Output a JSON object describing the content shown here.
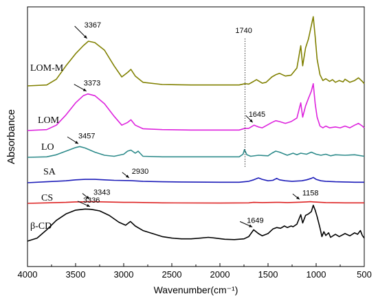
{
  "chart_data": {
    "type": "line",
    "title": "",
    "xlabel": "Wavenumber(cm⁻¹)",
    "ylabel": "Absorbance",
    "x_reversed": true,
    "xlim": [
      4000,
      500
    ],
    "xticks": [
      4000,
      3500,
      3000,
      2500,
      2000,
      1500,
      1000,
      500
    ],
    "yticks": [],
    "grid": false,
    "legend": "none",
    "series": [
      {
        "name": "LOM-M",
        "color": "#808000",
        "label_side": "left",
        "baseline": 0.0,
        "points": [
          [
            4000,
            0
          ],
          [
            3800,
            0.02
          ],
          [
            3700,
            0.15
          ],
          [
            3600,
            0.45
          ],
          [
            3500,
            0.72
          ],
          [
            3420,
            0.9
          ],
          [
            3367,
            1.0
          ],
          [
            3300,
            0.97
          ],
          [
            3200,
            0.8
          ],
          [
            3100,
            0.45
          ],
          [
            3020,
            0.2
          ],
          [
            2960,
            0.3
          ],
          [
            2925,
            0.37
          ],
          [
            2880,
            0.22
          ],
          [
            2800,
            0.08
          ],
          [
            2600,
            0.03
          ],
          [
            2300,
            0.02
          ],
          [
            2000,
            0.02
          ],
          [
            1800,
            0.02
          ],
          [
            1740,
            0.05
          ],
          [
            1700,
            0.04
          ],
          [
            1650,
            0.1
          ],
          [
            1620,
            0.14
          ],
          [
            1560,
            0.06
          ],
          [
            1520,
            0.08
          ],
          [
            1460,
            0.2
          ],
          [
            1420,
            0.25
          ],
          [
            1380,
            0.28
          ],
          [
            1320,
            0.22
          ],
          [
            1260,
            0.24
          ],
          [
            1200,
            0.4
          ],
          [
            1160,
            0.9
          ],
          [
            1140,
            0.45
          ],
          [
            1110,
            0.85
          ],
          [
            1080,
            1.05
          ],
          [
            1050,
            1.35
          ],
          [
            1030,
            1.55
          ],
          [
            1010,
            1.1
          ],
          [
            990,
            0.6
          ],
          [
            960,
            0.25
          ],
          [
            930,
            0.12
          ],
          [
            900,
            0.16
          ],
          [
            860,
            0.1
          ],
          [
            830,
            0.14
          ],
          [
            800,
            0.08
          ],
          [
            760,
            0.12
          ],
          [
            720,
            0.09
          ],
          [
            700,
            0.15
          ],
          [
            650,
            0.08
          ],
          [
            600,
            0.12
          ],
          [
            560,
            0.18
          ],
          [
            520,
            0.1
          ],
          [
            500,
            0.05
          ]
        ],
        "annotations": [
          {
            "text": "3367",
            "x": 3367
          }
        ]
      },
      {
        "name": "LOM",
        "color": "#dd22dd",
        "label_side": "left",
        "baseline": 0.0,
        "points": [
          [
            4000,
            0
          ],
          [
            3800,
            0.02
          ],
          [
            3700,
            0.12
          ],
          [
            3600,
            0.35
          ],
          [
            3500,
            0.62
          ],
          [
            3420,
            0.78
          ],
          [
            3373,
            0.82
          ],
          [
            3300,
            0.78
          ],
          [
            3200,
            0.6
          ],
          [
            3100,
            0.32
          ],
          [
            3020,
            0.12
          ],
          [
            2960,
            0.18
          ],
          [
            2925,
            0.24
          ],
          [
            2880,
            0.12
          ],
          [
            2800,
            0.04
          ],
          [
            2600,
            0.02
          ],
          [
            2300,
            0.01
          ],
          [
            2000,
            0.01
          ],
          [
            1800,
            0.01
          ],
          [
            1740,
            0.05
          ],
          [
            1700,
            0.05
          ],
          [
            1645,
            0.12
          ],
          [
            1600,
            0.08
          ],
          [
            1560,
            0.06
          ],
          [
            1460,
            0.18
          ],
          [
            1420,
            0.22
          ],
          [
            1380,
            0.2
          ],
          [
            1320,
            0.16
          ],
          [
            1260,
            0.2
          ],
          [
            1200,
            0.28
          ],
          [
            1160,
            0.62
          ],
          [
            1140,
            0.3
          ],
          [
            1110,
            0.55
          ],
          [
            1080,
            0.72
          ],
          [
            1050,
            0.88
          ],
          [
            1030,
            1.05
          ],
          [
            1010,
            0.6
          ],
          [
            990,
            0.3
          ],
          [
            960,
            0.1
          ],
          [
            930,
            0.06
          ],
          [
            900,
            0.1
          ],
          [
            860,
            0.06
          ],
          [
            800,
            0.08
          ],
          [
            750,
            0.06
          ],
          [
            700,
            0.1
          ],
          [
            650,
            0.06
          ],
          [
            600,
            0.12
          ],
          [
            560,
            0.16
          ],
          [
            520,
            0.1
          ],
          [
            500,
            0.06
          ]
        ],
        "annotations": [
          {
            "text": "3373",
            "x": 3373
          },
          {
            "text": "1645",
            "x": 1645
          }
        ]
      },
      {
        "name": "LO",
        "color": "#2e8b8b",
        "label_side": "left",
        "baseline": 0.0,
        "points": [
          [
            4000,
            0
          ],
          [
            3800,
            0.01
          ],
          [
            3700,
            0.05
          ],
          [
            3600,
            0.12
          ],
          [
            3500,
            0.19
          ],
          [
            3457,
            0.21
          ],
          [
            3400,
            0.18
          ],
          [
            3300,
            0.1
          ],
          [
            3200,
            0.04
          ],
          [
            3100,
            0.02
          ],
          [
            3000,
            0.06
          ],
          [
            2960,
            0.12
          ],
          [
            2925,
            0.14
          ],
          [
            2880,
            0.08
          ],
          [
            2850,
            0.12
          ],
          [
            2800,
            0.02
          ],
          [
            2600,
            0.01
          ],
          [
            2000,
            0.01
          ],
          [
            1800,
            0.01
          ],
          [
            1760,
            0.06
          ],
          [
            1745,
            0.15
          ],
          [
            1720,
            0.05
          ],
          [
            1680,
            0.02
          ],
          [
            1600,
            0.04
          ],
          [
            1500,
            0.03
          ],
          [
            1460,
            0.08
          ],
          [
            1420,
            0.12
          ],
          [
            1380,
            0.1
          ],
          [
            1300,
            0.04
          ],
          [
            1240,
            0.08
          ],
          [
            1200,
            0.05
          ],
          [
            1160,
            0.08
          ],
          [
            1100,
            0.06
          ],
          [
            1050,
            0.1
          ],
          [
            1000,
            0.06
          ],
          [
            950,
            0.04
          ],
          [
            900,
            0.06
          ],
          [
            850,
            0.03
          ],
          [
            800,
            0.05
          ],
          [
            700,
            0.04
          ],
          [
            600,
            0.05
          ],
          [
            500,
            0.02
          ]
        ],
        "annotations": [
          {
            "text": "3457",
            "x": 3457
          }
        ]
      },
      {
        "name": "SA",
        "color": "#1a1ab8",
        "label_side": "left",
        "baseline": 0.0,
        "points": [
          [
            4000,
            0
          ],
          [
            3800,
            0.02
          ],
          [
            3600,
            0.04
          ],
          [
            3500,
            0.06
          ],
          [
            3400,
            0.07
          ],
          [
            3300,
            0.07
          ],
          [
            3200,
            0.06
          ],
          [
            3100,
            0.05
          ],
          [
            2930,
            0.045
          ],
          [
            2800,
            0.03
          ],
          [
            2600,
            0.02
          ],
          [
            2400,
            0.015
          ],
          [
            2000,
            0.01
          ],
          [
            1800,
            0.01
          ],
          [
            1700,
            0.03
          ],
          [
            1650,
            0.06
          ],
          [
            1600,
            0.1
          ],
          [
            1560,
            0.07
          ],
          [
            1500,
            0.04
          ],
          [
            1450,
            0.05
          ],
          [
            1410,
            0.09
          ],
          [
            1380,
            0.06
          ],
          [
            1320,
            0.04
          ],
          [
            1250,
            0.03
          ],
          [
            1150,
            0.04
          ],
          [
            1100,
            0.06
          ],
          [
            1050,
            0.09
          ],
          [
            1030,
            0.11
          ],
          [
            1000,
            0.07
          ],
          [
            950,
            0.04
          ],
          [
            900,
            0.03
          ],
          [
            800,
            0.02
          ],
          [
            700,
            0.015
          ],
          [
            600,
            0.01
          ],
          [
            500,
            0.01
          ]
        ],
        "annotations": [
          {
            "text": "2930",
            "x": 2930
          }
        ]
      },
      {
        "name": "CS",
        "color": "#dd2222",
        "label_side": "left",
        "baseline": 0.0,
        "points": [
          [
            4000,
            0
          ],
          [
            3800,
            0.01
          ],
          [
            3600,
            0.02
          ],
          [
            3500,
            0.03
          ],
          [
            3343,
            0.035
          ],
          [
            3200,
            0.03
          ],
          [
            3000,
            0.02
          ],
          [
            2900,
            0.02
          ],
          [
            2600,
            0.01
          ],
          [
            2000,
            0.005
          ],
          [
            1700,
            0.01
          ],
          [
            1650,
            0.02
          ],
          [
            1560,
            0.015
          ],
          [
            1420,
            0.02
          ],
          [
            1380,
            0.02
          ],
          [
            1300,
            0.015
          ],
          [
            1158,
            0.025
          ],
          [
            1100,
            0.03
          ],
          [
            1060,
            0.035
          ],
          [
            1030,
            0.03
          ],
          [
            900,
            0.015
          ],
          [
            700,
            0.01
          ],
          [
            500,
            0.01
          ]
        ],
        "annotations": [
          {
            "text": "3343",
            "x": 3343
          },
          {
            "text": "1158",
            "x": 1158
          }
        ]
      },
      {
        "name": "β-CD",
        "color": "#000000",
        "label_side": "left",
        "baseline": 0.0,
        "points": [
          [
            4000,
            0
          ],
          [
            3900,
            0.08
          ],
          [
            3800,
            0.3
          ],
          [
            3700,
            0.55
          ],
          [
            3600,
            0.72
          ],
          [
            3500,
            0.82
          ],
          [
            3400,
            0.85
          ],
          [
            3336,
            0.84
          ],
          [
            3250,
            0.8
          ],
          [
            3150,
            0.68
          ],
          [
            3050,
            0.5
          ],
          [
            2980,
            0.42
          ],
          [
            2930,
            0.52
          ],
          [
            2880,
            0.4
          ],
          [
            2800,
            0.28
          ],
          [
            2700,
            0.2
          ],
          [
            2600,
            0.12
          ],
          [
            2500,
            0.08
          ],
          [
            2400,
            0.06
          ],
          [
            2300,
            0.06
          ],
          [
            2200,
            0.08
          ],
          [
            2120,
            0.1
          ],
          [
            2050,
            0.08
          ],
          [
            1950,
            0.05
          ],
          [
            1850,
            0.04
          ],
          [
            1750,
            0.06
          ],
          [
            1700,
            0.12
          ],
          [
            1649,
            0.3
          ],
          [
            1600,
            0.2
          ],
          [
            1560,
            0.14
          ],
          [
            1500,
            0.2
          ],
          [
            1450,
            0.32
          ],
          [
            1410,
            0.36
          ],
          [
            1370,
            0.34
          ],
          [
            1330,
            0.4
          ],
          [
            1300,
            0.36
          ],
          [
            1260,
            0.4
          ],
          [
            1240,
            0.38
          ],
          [
            1200,
            0.45
          ],
          [
            1160,
            0.7
          ],
          [
            1140,
            0.48
          ],
          [
            1110,
            0.68
          ],
          [
            1080,
            0.72
          ],
          [
            1050,
            0.78
          ],
          [
            1030,
            0.95
          ],
          [
            1010,
            0.82
          ],
          [
            990,
            0.65
          ],
          [
            960,
            0.35
          ],
          [
            940,
            0.12
          ],
          [
            920,
            0.25
          ],
          [
            900,
            0.15
          ],
          [
            870,
            0.22
          ],
          [
            850,
            0.1
          ],
          [
            800,
            0.18
          ],
          [
            760,
            0.12
          ],
          [
            700,
            0.2
          ],
          [
            650,
            0.14
          ],
          [
            600,
            0.22
          ],
          [
            570,
            0.18
          ],
          [
            540,
            0.28
          ],
          [
            520,
            0.15
          ],
          [
            500,
            0.08
          ]
        ],
        "annotations": [
          {
            "text": "3336",
            "x": 3336
          },
          {
            "text": "1649",
            "x": 1649
          }
        ]
      }
    ],
    "vline": {
      "x": 1740,
      "label": "1740",
      "style": "dotted"
    }
  }
}
